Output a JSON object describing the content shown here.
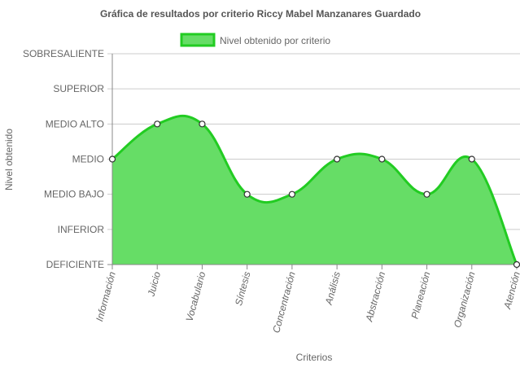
{
  "chart_data": {
    "type": "area",
    "title": "Gráfica de resultados por criterio Riccy Mabel Manzanares Guardado",
    "xlabel": "Criterios",
    "ylabel": "Nivel obtenido",
    "legend": {
      "position": "top",
      "entries": [
        "Nivel obtenido por criterio"
      ]
    },
    "y_levels": [
      "DEFICIENTE",
      "INFERIOR",
      "MEDIO BAJO",
      "MEDIO",
      "MEDIO ALTO",
      "SUPERIOR",
      "SOBRESALIENTE"
    ],
    "categories": [
      "Información",
      "Juicio",
      "Vocabulario",
      "Síntesis",
      "Concentración",
      "Análisis",
      "Abstracción",
      "Planeación",
      "Organización",
      "Atención"
    ],
    "series": [
      {
        "name": "Nivel obtenido por criterio",
        "values": [
          "MEDIO",
          "MEDIO ALTO",
          "MEDIO ALTO",
          "MEDIO BAJO",
          "MEDIO BAJO",
          "MEDIO",
          "MEDIO",
          "MEDIO BAJO",
          "MEDIO",
          "DEFICIENTE"
        ]
      }
    ],
    "grid": true,
    "smooth": true,
    "colors": {
      "fill": "#66dd66",
      "line": "#22cc22",
      "grid": "#cccccc",
      "axis": "#888888",
      "text": "#666666",
      "title": "#555555",
      "point_fill": "#ffffff",
      "point_stroke": "#333333"
    }
  }
}
